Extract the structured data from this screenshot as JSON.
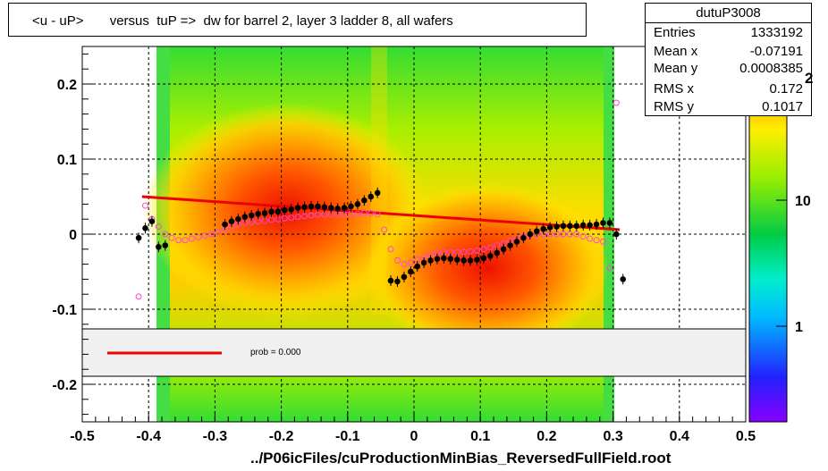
{
  "title": "<u - uP>       versus  tuP =>  dw for barrel 2, layer 3 ladder 8, all wafers",
  "xlabel": "../P06icFiles/cuProductionMinBias_ReversedFullField.root",
  "stats": {
    "name": "dutuP3008",
    "rows": [
      {
        "key": "Entries",
        "value": "1333192"
      },
      {
        "key": "Mean x",
        "value": "-0.07191"
      },
      {
        "key": "Mean y",
        "value": "0.0008385"
      },
      {
        "key": "RMS x",
        "value": "0.172"
      },
      {
        "key": "RMS y",
        "value": "0.1017"
      }
    ]
  },
  "legend": {
    "text": "prob = 0.000",
    "line_color": "#ee0000"
  },
  "power_label": "2",
  "colors": {
    "fit": "#ee0000",
    "profile": "#000000",
    "profile2": "#ff44dd",
    "axis": "#000000"
  },
  "chart_data": {
    "type": "heatmap",
    "xlim": [
      -0.5,
      0.5
    ],
    "ylim": [
      -0.25,
      0.25
    ],
    "x_ticks": [
      "-0.5",
      "-0.4",
      "-0.3",
      "-0.2",
      "-0.1",
      "0",
      "0.1",
      "0.2",
      "0.3",
      "0.4",
      "0.5"
    ],
    "y_ticks": [
      "0.2",
      "0.1",
      "0",
      "-0.1",
      "-0.2"
    ],
    "z_ticks": [
      "10",
      "1"
    ],
    "grid": true,
    "fit_line": {
      "x": [
        -0.41,
        0.31
      ],
      "y": [
        0.05,
        0.006
      ]
    },
    "profile_black": {
      "x": [
        -0.415,
        -0.405,
        -0.395,
        -0.385,
        -0.375,
        -0.285,
        -0.275,
        -0.265,
        -0.255,
        -0.245,
        -0.235,
        -0.225,
        -0.215,
        -0.205,
        -0.195,
        -0.185,
        -0.175,
        -0.165,
        -0.155,
        -0.145,
        -0.135,
        -0.125,
        -0.115,
        -0.105,
        -0.095,
        -0.085,
        -0.075,
        -0.065,
        -0.055,
        -0.035,
        -0.025,
        -0.015,
        -0.005,
        0.005,
        0.015,
        0.025,
        0.035,
        0.045,
        0.055,
        0.065,
        0.075,
        0.085,
        0.095,
        0.105,
        0.115,
        0.125,
        0.135,
        0.145,
        0.155,
        0.165,
        0.175,
        0.185,
        0.195,
        0.205,
        0.215,
        0.225,
        0.235,
        0.245,
        0.255,
        0.265,
        0.275,
        0.285,
        0.295,
        0.305,
        0.315
      ],
      "y": [
        -0.005,
        0.008,
        0.017,
        -0.017,
        -0.015,
        0.013,
        0.017,
        0.02,
        0.023,
        0.025,
        0.027,
        0.028,
        0.03,
        0.03,
        0.032,
        0.033,
        0.035,
        0.036,
        0.037,
        0.037,
        0.036,
        0.035,
        0.034,
        0.035,
        0.037,
        0.04,
        0.045,
        0.05,
        0.055,
        -0.062,
        -0.063,
        -0.057,
        -0.05,
        -0.043,
        -0.038,
        -0.035,
        -0.033,
        -0.032,
        -0.033,
        -0.034,
        -0.035,
        -0.035,
        -0.034,
        -0.032,
        -0.029,
        -0.025,
        -0.02,
        -0.015,
        -0.01,
        -0.005,
        0.0,
        0.004,
        0.007,
        0.009,
        0.01,
        0.011,
        0.011,
        0.011,
        0.012,
        0.012,
        0.013,
        0.015,
        0.015,
        0.0,
        -0.06
      ]
    },
    "profile_magenta": {
      "x": [
        -0.415,
        -0.405,
        -0.395,
        -0.385,
        -0.375,
        -0.365,
        -0.355,
        -0.345,
        -0.335,
        -0.325,
        -0.315,
        -0.305,
        -0.295,
        -0.285,
        -0.275,
        -0.265,
        -0.255,
        -0.245,
        -0.235,
        -0.225,
        -0.215,
        -0.205,
        -0.195,
        -0.185,
        -0.175,
        -0.165,
        -0.155,
        -0.145,
        -0.135,
        -0.125,
        -0.115,
        -0.105,
        -0.095,
        -0.085,
        -0.075,
        -0.065,
        -0.055,
        -0.045,
        -0.035,
        -0.025,
        -0.015,
        -0.005,
        0.005,
        0.015,
        0.025,
        0.035,
        0.045,
        0.055,
        0.065,
        0.075,
        0.085,
        0.095,
        0.105,
        0.115,
        0.125,
        0.135,
        0.145,
        0.155,
        0.165,
        0.175,
        0.185,
        0.195,
        0.205,
        0.215,
        0.225,
        0.235,
        0.245,
        0.255,
        0.265,
        0.275,
        0.285,
        0.295,
        0.305
      ],
      "y": [
        -0.083,
        0.038,
        0.02,
        0.01,
        0.0,
        -0.005,
        -0.008,
        -0.008,
        -0.006,
        -0.004,
        -0.002,
        0.0,
        0.003,
        0.007,
        0.01,
        0.013,
        0.015,
        0.016,
        0.017,
        0.018,
        0.019,
        0.02,
        0.021,
        0.022,
        0.023,
        0.024,
        0.025,
        0.026,
        0.026,
        0.026,
        0.026,
        0.026,
        0.027,
        0.027,
        0.028,
        0.028,
        0.027,
        0.006,
        -0.02,
        -0.035,
        -0.04,
        -0.038,
        -0.034,
        -0.03,
        -0.027,
        -0.025,
        -0.024,
        -0.024,
        -0.024,
        -0.024,
        -0.023,
        -0.022,
        -0.02,
        -0.018,
        -0.015,
        -0.012,
        -0.009,
        -0.006,
        -0.003,
        -0.001,
        0.0,
        0.0,
        0.0,
        0.0,
        0.0,
        0.0,
        0.0,
        -0.003,
        -0.006,
        -0.008,
        -0.01,
        -0.045,
        0.175
      ]
    }
  }
}
